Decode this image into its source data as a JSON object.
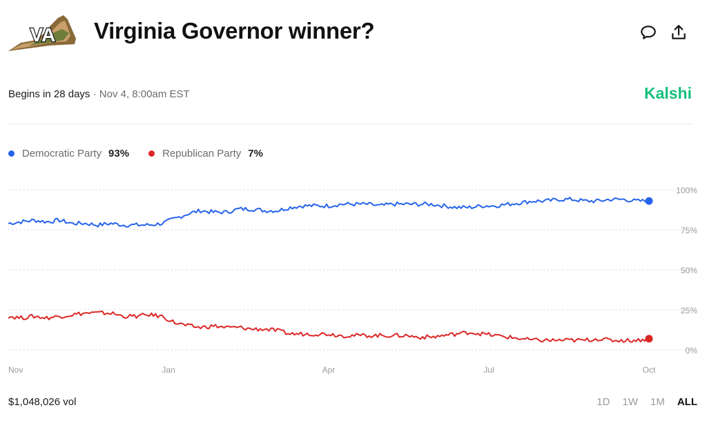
{
  "header": {
    "title": "Virginia Governor winner?",
    "logo_text": "VA"
  },
  "meta": {
    "begins": "Begins in 28 days",
    "separator": "·",
    "date": "Nov 4, 8:00am EST"
  },
  "brand": "Kalshi",
  "legend": [
    {
      "name": "Democratic Party",
      "pct": "93%",
      "color": "#2563eb"
    },
    {
      "name": "Republican Party",
      "pct": "7%",
      "color": "#dc2626"
    }
  ],
  "footer": {
    "volume": "$1,048,026 vol",
    "ranges": [
      "1D",
      "1W",
      "1M",
      "ALL"
    ],
    "active_range": "ALL"
  },
  "chart_data": {
    "type": "line",
    "x_ticks": [
      {
        "label": "Nov",
        "t": 0.0
      },
      {
        "label": "Jan",
        "t": 0.25
      },
      {
        "label": "Apr",
        "t": 0.5
      },
      {
        "label": "Jul",
        "t": 0.75
      },
      {
        "label": "Oct",
        "t": 1.0
      }
    ],
    "y_ticks": [
      100,
      75,
      50,
      25,
      0
    ],
    "y_tick_labels": [
      "100%",
      "75%",
      "50%",
      "25%",
      "0%"
    ],
    "ylim": [
      0,
      100
    ],
    "grid": true,
    "series": [
      {
        "name": "Democratic Party",
        "color": "#2563eb",
        "points": [
          [
            0.0,
            79
          ],
          [
            0.02,
            80
          ],
          [
            0.04,
            81
          ],
          [
            0.06,
            80
          ],
          [
            0.08,
            81
          ],
          [
            0.1,
            79
          ],
          [
            0.12,
            79
          ],
          [
            0.14,
            78
          ],
          [
            0.16,
            79
          ],
          [
            0.18,
            78
          ],
          [
            0.2,
            78
          ],
          [
            0.22,
            78
          ],
          [
            0.24,
            79
          ],
          [
            0.26,
            82
          ],
          [
            0.28,
            85
          ],
          [
            0.3,
            87
          ],
          [
            0.32,
            86
          ],
          [
            0.34,
            86
          ],
          [
            0.36,
            88
          ],
          [
            0.38,
            88
          ],
          [
            0.4,
            87
          ],
          [
            0.42,
            87
          ],
          [
            0.44,
            89
          ],
          [
            0.46,
            90
          ],
          [
            0.48,
            90
          ],
          [
            0.5,
            90
          ],
          [
            0.52,
            91
          ],
          [
            0.54,
            91
          ],
          [
            0.56,
            91
          ],
          [
            0.58,
            90
          ],
          [
            0.6,
            91
          ],
          [
            0.62,
            91
          ],
          [
            0.64,
            91
          ],
          [
            0.66,
            91
          ],
          [
            0.68,
            90
          ],
          [
            0.7,
            89
          ],
          [
            0.72,
            89
          ],
          [
            0.74,
            90
          ],
          [
            0.76,
            90
          ],
          [
            0.78,
            91
          ],
          [
            0.8,
            92
          ],
          [
            0.82,
            93
          ],
          [
            0.84,
            93
          ],
          [
            0.86,
            94
          ],
          [
            0.88,
            94
          ],
          [
            0.9,
            93
          ],
          [
            0.92,
            93
          ],
          [
            0.94,
            94
          ],
          [
            0.96,
            94
          ],
          [
            0.98,
            93
          ],
          [
            1.0,
            93
          ]
        ]
      },
      {
        "name": "Republican Party",
        "color": "#dc2626",
        "points": [
          [
            0.0,
            21
          ],
          [
            0.02,
            20
          ],
          [
            0.04,
            21
          ],
          [
            0.06,
            20
          ],
          [
            0.08,
            21
          ],
          [
            0.1,
            22
          ],
          [
            0.12,
            23
          ],
          [
            0.14,
            23
          ],
          [
            0.16,
            23
          ],
          [
            0.18,
            21
          ],
          [
            0.2,
            21
          ],
          [
            0.22,
            22
          ],
          [
            0.24,
            21
          ],
          [
            0.26,
            17
          ],
          [
            0.28,
            15
          ],
          [
            0.3,
            14
          ],
          [
            0.32,
            15
          ],
          [
            0.34,
            14
          ],
          [
            0.36,
            14
          ],
          [
            0.38,
            13
          ],
          [
            0.4,
            13
          ],
          [
            0.42,
            12
          ],
          [
            0.44,
            10
          ],
          [
            0.46,
            10
          ],
          [
            0.48,
            10
          ],
          [
            0.5,
            10
          ],
          [
            0.52,
            9
          ],
          [
            0.54,
            9
          ],
          [
            0.56,
            9
          ],
          [
            0.58,
            9
          ],
          [
            0.6,
            9
          ],
          [
            0.62,
            9
          ],
          [
            0.64,
            8
          ],
          [
            0.66,
            8
          ],
          [
            0.68,
            9
          ],
          [
            0.7,
            10
          ],
          [
            0.72,
            11
          ],
          [
            0.74,
            10
          ],
          [
            0.76,
            9
          ],
          [
            0.78,
            8
          ],
          [
            0.8,
            7
          ],
          [
            0.82,
            6
          ],
          [
            0.84,
            6
          ],
          [
            0.86,
            6
          ],
          [
            0.88,
            6
          ],
          [
            0.9,
            6
          ],
          [
            0.92,
            7
          ],
          [
            0.94,
            6
          ],
          [
            0.96,
            6
          ],
          [
            0.98,
            6
          ],
          [
            1.0,
            7
          ]
        ]
      }
    ]
  }
}
